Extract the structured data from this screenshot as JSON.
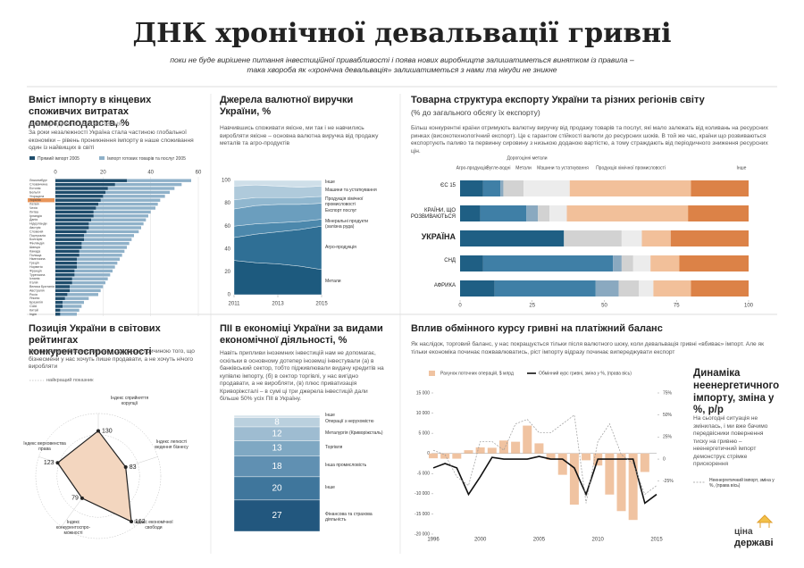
{
  "header": {
    "title": "ДНК хронічної девальвації гривні",
    "subtitle": [
      "поки не буде вирішене питання інвестиційної привабливості і поява нових виробництв залишатиметься винятком із правила –",
      "така хвороба як «хронічна девальвація» залишатиметься з нами та нікуди не зникне"
    ]
  },
  "chart_data": [
    {
      "type": "hbar-overlay",
      "title": "Вміст імпорту в кінцевих споживчих витратах домогосподарств, %",
      "subtitle": "міжнародне співставлення",
      "text": "За роки незалежності Україна стала частиною глобальної економіки – рівень проникнення імпорту в наше споживання один із найвищих в світі",
      "categories": [
        "Люксембург",
        "Словаччина",
        "Естонія",
        "Бельгія",
        "Угорщина",
        "Україна",
        "Латвія",
        "Чехія",
        "Литва",
        "Ірландія",
        "Данія",
        "Нідерланди",
        "Австрія",
        "Словенія",
        "Португалія",
        "Болгарія",
        "Фінляндія",
        "Швеція",
        "Канада",
        "Польща",
        "Німеччина",
        "Греція",
        "Норвегія",
        "Франція",
        "Туреччина",
        "Іспанія",
        "Італія",
        "Велика Британія",
        "Австралія",
        "Росія",
        "Японія",
        "Бразилія",
        "США",
        "Китай",
        "Індія"
      ],
      "series": [
        {
          "name": "Прямий імпорт 2005",
          "color": "#1f4d6c",
          "values": [
            30,
            25,
            22,
            21,
            20,
            19,
            18,
            17,
            16,
            16,
            15,
            14,
            14,
            13,
            12,
            12,
            11,
            11,
            10,
            10,
            9,
            9,
            9,
            8,
            8,
            7,
            7,
            6,
            6,
            5,
            4,
            3,
            3,
            2,
            2
          ]
        },
        {
          "name": "Імпорт готових товарів та послуг 2005",
          "color": "#8fb1c9",
          "values": [
            57,
            53,
            50,
            48,
            46,
            44,
            43,
            42,
            40,
            39,
            38,
            37,
            36,
            35,
            33,
            32,
            31,
            30,
            29,
            28,
            27,
            26,
            25,
            24,
            23,
            22,
            21,
            20,
            19,
            18,
            14,
            12,
            11,
            10,
            9
          ]
        }
      ],
      "highlight_index": 5,
      "highlight_color": "#e8955a",
      "xlim": [
        0,
        60
      ],
      "xticks": [
        0,
        20,
        40,
        60
      ],
      "grid": true
    },
    {
      "type": "stacked-area",
      "title": "Джерела валютної виручки України, %",
      "text": "Навчившись споживати якісне, ми так і не навчились виробляти якісне – основна валютна виручка від продажу металів та агро-продуктів",
      "x": [
        2011,
        2012,
        2013,
        2014,
        2015
      ],
      "series": [
        {
          "name": "Метали",
          "color": "#1d5a7e",
          "values": [
            30,
            28,
            27,
            25,
            22
          ]
        },
        {
          "name": "Агро-продукція",
          "color": "#2f6f95",
          "values": [
            20,
            25,
            28,
            32,
            38
          ]
        },
        {
          "name": "Мінеральні продукти (залізна руда)",
          "color": "#4c88ac",
          "values": [
            10,
            9,
            8,
            7,
            6
          ]
        },
        {
          "name": "Експорт послуг",
          "color": "#6b9ebe",
          "values": [
            15,
            16,
            16,
            15,
            14
          ]
        },
        {
          "name": "Продукція хімічної промисловості",
          "color": "#90b7cf",
          "values": [
            8,
            7,
            6,
            6,
            6
          ]
        },
        {
          "name": "Машини та устаткування",
          "color": "#afcadb",
          "values": [
            12,
            11,
            10,
            9,
            9
          ]
        },
        {
          "name": "Інше",
          "color": "#cfdfe9",
          "values": [
            5,
            4,
            5,
            6,
            5
          ]
        }
      ],
      "xlim": [
        2011,
        2015
      ],
      "xticks": [
        2011,
        2013,
        2015
      ],
      "ylim": [
        0,
        100
      ],
      "yticks": [
        0,
        20,
        40,
        60,
        80,
        100
      ]
    },
    {
      "type": "stacked-hbar",
      "title": "Товарна структура експорту України та різних регіонів світу",
      "subtitle": "(% до загального обсягу їх експорту)",
      "text": "Більш конкурентні країни отримують валютну виручку від продажу товарів та послуг, які мало залежать від коливань на ресурсних ринках (високотехнологічний експорт). Це є гарантом стійкості валюти до ресурсних шоків. В той же час, країни що розвиваються експортують паливо та первинну сировину з низькою доданою вартістю, а тому страждають від періодичного зниження ресурсних цін.",
      "categories": [
        "ЄС 15",
        "КРАЇНИ, ЩО РОЗВИВАЮТЬСЯ",
        "УКРАЇНА",
        "СНД",
        "АФРИКА"
      ],
      "series": [
        {
          "name": "Агро-продукція",
          "color": "#1f5f84",
          "values": [
            8,
            7,
            36,
            8,
            12
          ]
        },
        {
          "name": "Вугле-водні",
          "color": "#3f7fa6",
          "values": [
            6,
            16,
            0,
            45,
            35
          ]
        },
        {
          "name": "Дорогоцінні метали",
          "color": "#8aa9c0",
          "values": [
            1,
            4,
            0,
            3,
            8
          ]
        },
        {
          "name": "Метали",
          "color": "#d2d2d2",
          "values": [
            7,
            4,
            20,
            4,
            7
          ]
        },
        {
          "name": "Машини та устаткування",
          "color": "#ececec",
          "values": [
            16,
            6,
            7,
            6,
            5
          ]
        },
        {
          "name": "Продукція хімічної промисловості",
          "color": "#f2c09a",
          "values": [
            42,
            42,
            10,
            10,
            13
          ]
        },
        {
          "name": "Інше",
          "color": "#dc8247",
          "values": [
            20,
            21,
            27,
            24,
            20
          ]
        }
      ],
      "xlim": [
        0,
        100
      ],
      "xticks": [
        0,
        25,
        50,
        75,
        100
      ]
    },
    {
      "type": "radar",
      "title": "Позиція України в світових рейтингах конкурентоспроможності",
      "text": "Несприятливий бізнес-клімат є основною причиною того, що бізнесмени у нас хочуть лише продавати, а не хочуть нічого виробляти",
      "legend": "найкращий показник",
      "categories": [
        "Індекс сприйняття корупції",
        "Індекс легкості ведення бізнесу",
        "Індекс економічної свободи",
        "Індекс конкурентоспро-можності",
        "Індекс верховенства права"
      ],
      "values": [
        130,
        83,
        162,
        79,
        123
      ],
      "color": "#f3d6bf",
      "rlim": [
        0,
        180
      ]
    },
    {
      "type": "stacked-column",
      "title": "ПІІ в економіці України за видами економічної діяльності, %",
      "text": "Навіть припливи іноземних інвестицій нам не допомагає, оскільки в основному дотепер іноземці інвестували (а) в банківський сектор, тобто підживлювали видачу кредитів на купівлю імпорту, (б) в сектор торгівлі, у нас вигідно продавати, а не виробляти, (в) плюс приватизація Криворіжсталі – в сумі ці три джерела інвестицій дали більше 50% усіх ПІІ в Україну.",
      "categories": [
        "Інше",
        "Операції з нерухомістю",
        "Металургія (Криворіжсталь)",
        "Торгівля",
        "Інша промисловість",
        "Інше",
        "Фінансова та страхова діяльність"
      ],
      "values": [
        2,
        8,
        12,
        13,
        18,
        20,
        27
      ],
      "value_labels": [
        null,
        "8",
        "12",
        "13",
        "18",
        "20",
        "27"
      ],
      "colors": [
        "#d8e4ec",
        "#bad0de",
        "#9ebcd1",
        "#7fa8c3",
        "#6090b2",
        "#3f769c",
        "#22577e"
      ],
      "ylim": [
        0,
        100
      ]
    },
    {
      "type": "combo",
      "title": "Вплив обмінного курсу гривні на платіжний баланс",
      "text": "Як наслідок, торговий баланс, у нас покращується тільки після валютного шоку, коли девальвація гривні «вбиває» імпорт. Але як тільки економіка починає пожвавлюватись, ріст імпорту відразу починає випереджувати експорт",
      "x": [
        1996,
        1997,
        1998,
        1999,
        2000,
        2001,
        2002,
        2003,
        2004,
        2005,
        2006,
        2007,
        2008,
        2009,
        2010,
        2011,
        2012,
        2013,
        2014,
        2015
      ],
      "series": [
        {
          "name": "Рахунок поточних операцій, $ млрд",
          "type": "bar",
          "color": "#f0c3a1",
          "values": [
            -1200,
            -1300,
            -1300,
            800,
            1500,
            1400,
            3200,
            2900,
            6900,
            2500,
            -1600,
            -5300,
            -12700,
            -1700,
            -3000,
            -10200,
            -14300,
            -16500,
            -4600,
            0
          ]
        },
        {
          "name": "Обмінний курс гривні, зміна у %, (права вісь)",
          "type": "line",
          "axis": "y2",
          "color": "#111111",
          "values": [
            -10,
            -5,
            -10,
            -40,
            -20,
            2,
            0,
            0,
            0,
            3,
            0,
            0,
            -10,
            -40,
            0,
            0,
            0,
            0,
            -50,
            -40
          ]
        },
        {
          "name": "Неенергетичний імпорт, зміна у %, (права вісь)",
          "type": "line",
          "axis": "y2",
          "dashed": true,
          "color": "#9a9a9a",
          "values": [
            10,
            5,
            -20,
            -30,
            20,
            20,
            10,
            40,
            45,
            30,
            30,
            40,
            50,
            -50,
            20,
            40,
            5,
            -5,
            -40,
            -30
          ]
        }
      ],
      "xlim": [
        1996,
        2015
      ],
      "xticks": [
        1996,
        2000,
        2005,
        2010,
        2015
      ],
      "ylim": [
        -20000,
        15000
      ],
      "yticks": [
        {
          "value": 15000,
          "label": "15 000"
        },
        {
          "value": 10000,
          "label": "10 000"
        },
        {
          "value": 5000,
          "label": "5 000"
        },
        0,
        {
          "value": -5000,
          "label": "-5 000"
        },
        {
          "value": -10000,
          "label": "-10 000"
        },
        {
          "value": -15000,
          "label": "-15 000"
        },
        {
          "value": -20000,
          "label": "-20 000"
        }
      ],
      "y2lim": [
        -85,
        75
      ],
      "y2ticks": [
        {
          "value": 75,
          "label": "75%"
        },
        {
          "value": 50,
          "label": "50%"
        },
        {
          "value": 25,
          "label": "25%"
        },
        0,
        {
          "value": -25,
          "label": "-25%"
        }
      ]
    }
  ],
  "sidebar": {
    "title": "Динаміка неенергетичного імпорту, зміна у %, р/р",
    "text": "На сьогодні ситуація не змінилась, і ми вже бачимо передвісники повернення тиску на гривню – неенергетичний імпорт демонструє стрімке прискорення"
  },
  "logo": [
    "ціна",
    "державі"
  ]
}
